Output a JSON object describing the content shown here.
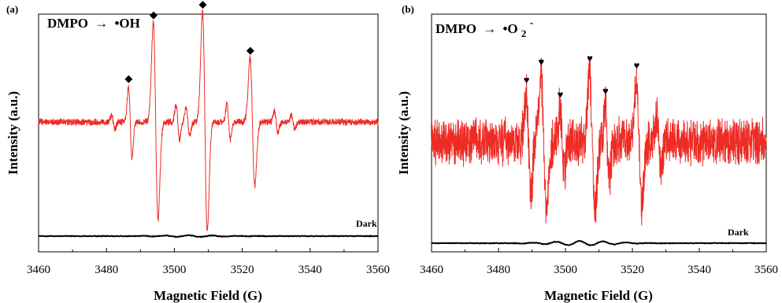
{
  "chart_data": [
    {
      "type": "line",
      "panel_label": "(a)",
      "annotation": {
        "prefix": "DMPO",
        "arrow": "→",
        "species": "•OH",
        "sup": ""
      },
      "xlabel": "Magnetic Field (G)",
      "ylabel": "Intensity (a.u.)",
      "xlim": [
        3460,
        3560
      ],
      "xticks": [
        "3460",
        "3480",
        "3500",
        "3520",
        "3540",
        "3560"
      ],
      "grid": false,
      "marker_symbol": "◆",
      "marker_color": "#000000",
      "baseline": 0,
      "noise": 0.08,
      "ylim": [
        -3.0,
        2.6
      ],
      "peaks": [
        {
          "x": 3487,
          "a": 1.0,
          "w": 0.5,
          "marked": true
        },
        {
          "x": 3494.5,
          "a": 2.8,
          "w": 0.7,
          "marked": true
        },
        {
          "x": 3509,
          "a": 3.1,
          "w": 0.7,
          "marked": true
        },
        {
          "x": 3523,
          "a": 1.8,
          "w": 0.7,
          "marked": true
        },
        {
          "x": 3482,
          "a": 0.2,
          "w": 0.5,
          "marked": false
        },
        {
          "x": 3501,
          "a": 0.5,
          "w": 0.5,
          "marked": false
        },
        {
          "x": 3504,
          "a": 0.4,
          "w": 0.5,
          "marked": false
        },
        {
          "x": 3516,
          "a": 0.5,
          "w": 0.5,
          "marked": false
        },
        {
          "x": 3530,
          "a": 0.3,
          "w": 0.5,
          "marked": false
        },
        {
          "x": 3535,
          "a": 0.2,
          "w": 0.5,
          "marked": false
        }
      ],
      "series": [
        {
          "name": "",
          "color": "#ee2b24"
        },
        {
          "name": "Dark",
          "color": "#000000"
        }
      ]
    },
    {
      "type": "line",
      "panel_label": "(b)",
      "annotation": {
        "prefix": "DMPO",
        "arrow": "→",
        "species": "•O",
        "sub": "2",
        "sup": "-"
      },
      "xlabel": "Magnetic Field (G)",
      "ylabel": "Intensity (a.u.)",
      "xlim": [
        3460,
        3560
      ],
      "xticks": [
        "3460",
        "3480",
        "3500",
        "3520",
        "3540",
        "3560"
      ],
      "grid": false,
      "marker_symbol": "♥",
      "marker_color": "#000000",
      "baseline": 0,
      "noise": 0.55,
      "ylim": [
        -3.2,
        2.3
      ],
      "peaks": [
        {
          "x": 3489,
          "a": 1.3,
          "w": 0.7,
          "marked": true
        },
        {
          "x": 3493.5,
          "a": 1.8,
          "w": 0.8,
          "marked": true
        },
        {
          "x": 3499,
          "a": 0.9,
          "w": 0.6,
          "marked": true
        },
        {
          "x": 3508,
          "a": 1.9,
          "w": 0.8,
          "marked": true
        },
        {
          "x": 3512.5,
          "a": 1.0,
          "w": 0.6,
          "marked": true
        },
        {
          "x": 3522,
          "a": 1.7,
          "w": 0.8,
          "marked": true
        },
        {
          "x": 3528,
          "a": 0.8,
          "w": 0.6,
          "marked": false
        }
      ],
      "series": [
        {
          "name": "",
          "color": "#ee2b24"
        },
        {
          "name": "Dark",
          "color": "#000000"
        }
      ]
    }
  ]
}
